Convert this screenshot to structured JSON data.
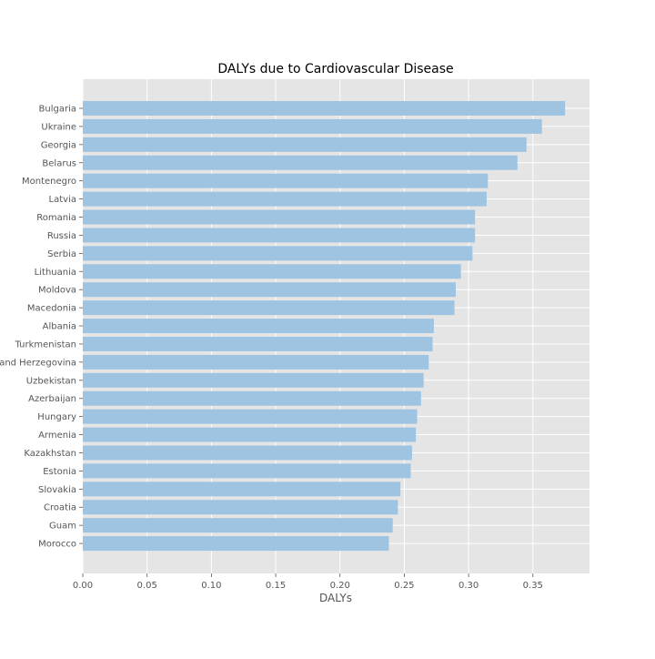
{
  "chart_data": {
    "type": "bar",
    "orientation": "horizontal",
    "title": "DALYs due to Cardiovascular Disease",
    "xlabel": "DALYs",
    "ylabel": "",
    "xlim": [
      0,
      0.394
    ],
    "xticks": [
      0.0,
      0.05,
      0.1,
      0.15,
      0.2,
      0.25,
      0.3,
      0.35
    ],
    "xtick_labels": [
      "0.00",
      "0.05",
      "0.10",
      "0.15",
      "0.20",
      "0.25",
      "0.30",
      "0.35"
    ],
    "grid": true,
    "categories": [
      "Bulgaria",
      "Ukraine",
      "Georgia",
      "Belarus",
      "Montenegro",
      "Latvia",
      "Romania",
      "Russia",
      "Serbia",
      "Lithuania",
      "Moldova",
      "Macedonia",
      "Albania",
      "Turkmenistan",
      "Bosnia and Herzegovina",
      "Uzbekistan",
      "Azerbaijan",
      "Hungary",
      "Armenia",
      "Kazakhstan",
      "Estonia",
      "Slovakia",
      "Croatia",
      "Guam",
      "Morocco"
    ],
    "values": [
      0.375,
      0.357,
      0.345,
      0.338,
      0.315,
      0.314,
      0.305,
      0.305,
      0.303,
      0.294,
      0.29,
      0.289,
      0.273,
      0.272,
      0.269,
      0.265,
      0.263,
      0.26,
      0.259,
      0.256,
      0.255,
      0.247,
      0.245,
      0.241,
      0.238
    ],
    "colors": {
      "bar": "#9ec4e2",
      "plot_background": "#e5e5e5",
      "grid": "#ffffff",
      "tick_text": "#555555",
      "title_text": "#000000"
    }
  }
}
